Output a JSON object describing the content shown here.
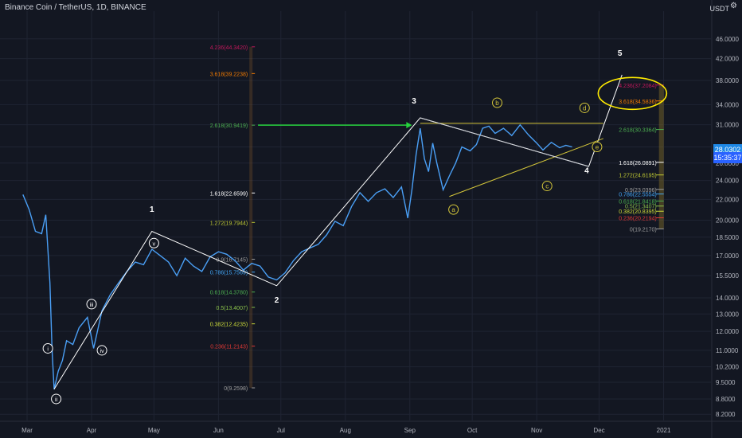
{
  "header": {
    "symbol": "Binance Coin / TetherUS, 1D, BINANCE",
    "unit": "USDT",
    "current_price": "28.0302",
    "countdown": "15:35:37"
  },
  "colors": {
    "background": "#131722",
    "price_line": "#4a9ff5",
    "wave_lines": "#ffffff",
    "abc_lines": "#d4c63a",
    "arrow": "#26d43d",
    "ellipse": "#ffeb00"
  },
  "chart_data": {
    "type": "line",
    "y_scale": "log",
    "ylim": [
      8.0,
      48.0
    ],
    "y_ticks": [
      46.0,
      42.0,
      38.0,
      34.0,
      31.0,
      28.0,
      26.0,
      24.0,
      22.0,
      20.0,
      18.5,
      17.0,
      15.5,
      14.0,
      13.0,
      12.0,
      11.0,
      10.2,
      9.5,
      8.8,
      8.2
    ],
    "x_months": [
      "Mar",
      "Apr",
      "May",
      "Jun",
      "Jul",
      "Aug",
      "Sep",
      "Oct",
      "Nov",
      "Dec",
      "2021"
    ],
    "price_series": [
      {
        "x": "2020-02-28",
        "y": 22.5
      },
      {
        "x": "2020-03-02",
        "y": 21.0
      },
      {
        "x": "2020-03-05",
        "y": 19.0
      },
      {
        "x": "2020-03-08",
        "y": 18.8
      },
      {
        "x": "2020-03-10",
        "y": 20.5
      },
      {
        "x": "2020-03-12",
        "y": 15.0
      },
      {
        "x": "2020-03-13",
        "y": 11.0
      },
      {
        "x": "2020-03-14",
        "y": 9.2
      },
      {
        "x": "2020-03-16",
        "y": 10.0
      },
      {
        "x": "2020-03-18",
        "y": 10.5
      },
      {
        "x": "2020-03-20",
        "y": 11.5
      },
      {
        "x": "2020-03-23",
        "y": 11.3
      },
      {
        "x": "2020-03-26",
        "y": 12.2
      },
      {
        "x": "2020-03-30",
        "y": 12.8
      },
      {
        "x": "2020-04-02",
        "y": 11.1
      },
      {
        "x": "2020-04-06",
        "y": 13.2
      },
      {
        "x": "2020-04-10",
        "y": 14.2
      },
      {
        "x": "2020-04-14",
        "y": 15.0
      },
      {
        "x": "2020-04-18",
        "y": 15.8
      },
      {
        "x": "2020-04-22",
        "y": 16.5
      },
      {
        "x": "2020-04-26",
        "y": 16.3
      },
      {
        "x": "2020-04-30",
        "y": 17.5
      },
      {
        "x": "2020-05-04",
        "y": 17.0
      },
      {
        "x": "2020-05-08",
        "y": 16.5
      },
      {
        "x": "2020-05-12",
        "y": 15.5
      },
      {
        "x": "2020-05-16",
        "y": 16.8
      },
      {
        "x": "2020-05-20",
        "y": 16.2
      },
      {
        "x": "2020-05-24",
        "y": 15.8
      },
      {
        "x": "2020-05-28",
        "y": 16.9
      },
      {
        "x": "2020-06-01",
        "y": 17.3
      },
      {
        "x": "2020-06-05",
        "y": 17.1
      },
      {
        "x": "2020-06-09",
        "y": 16.6
      },
      {
        "x": "2020-06-13",
        "y": 15.9
      },
      {
        "x": "2020-06-17",
        "y": 16.4
      },
      {
        "x": "2020-06-21",
        "y": 16.2
      },
      {
        "x": "2020-06-25",
        "y": 15.4
      },
      {
        "x": "2020-06-29",
        "y": 15.2
      },
      {
        "x": "2020-07-03",
        "y": 15.7
      },
      {
        "x": "2020-07-07",
        "y": 16.6
      },
      {
        "x": "2020-07-11",
        "y": 17.3
      },
      {
        "x": "2020-07-15",
        "y": 17.6
      },
      {
        "x": "2020-07-19",
        "y": 17.9
      },
      {
        "x": "2020-07-23",
        "y": 18.7
      },
      {
        "x": "2020-07-27",
        "y": 19.9
      },
      {
        "x": "2020-07-31",
        "y": 19.5
      },
      {
        "x": "2020-08-04",
        "y": 21.3
      },
      {
        "x": "2020-08-08",
        "y": 22.7
      },
      {
        "x": "2020-08-12",
        "y": 21.8
      },
      {
        "x": "2020-08-16",
        "y": 22.7
      },
      {
        "x": "2020-08-20",
        "y": 23.1
      },
      {
        "x": "2020-08-24",
        "y": 22.2
      },
      {
        "x": "2020-08-28",
        "y": 23.3
      },
      {
        "x": "2020-08-31",
        "y": 20.2
      },
      {
        "x": "2020-09-02",
        "y": 23.0
      },
      {
        "x": "2020-09-04",
        "y": 27.0
      },
      {
        "x": "2020-09-06",
        "y": 30.5
      },
      {
        "x": "2020-09-08",
        "y": 26.5
      },
      {
        "x": "2020-09-10",
        "y": 25.0
      },
      {
        "x": "2020-09-12",
        "y": 28.5
      },
      {
        "x": "2020-09-14",
        "y": 26.0
      },
      {
        "x": "2020-09-17",
        "y": 23.0
      },
      {
        "x": "2020-09-20",
        "y": 24.5
      },
      {
        "x": "2020-09-23",
        "y": 26.0
      },
      {
        "x": "2020-09-26",
        "y": 28.0
      },
      {
        "x": "2020-09-30",
        "y": 27.5
      },
      {
        "x": "2020-10-03",
        "y": 28.3
      },
      {
        "x": "2020-10-06",
        "y": 30.5
      },
      {
        "x": "2020-10-09",
        "y": 30.8
      },
      {
        "x": "2020-10-12",
        "y": 29.8
      },
      {
        "x": "2020-10-16",
        "y": 30.5
      },
      {
        "x": "2020-10-20",
        "y": 29.5
      },
      {
        "x": "2020-10-24",
        "y": 31.0
      },
      {
        "x": "2020-10-28",
        "y": 29.6
      },
      {
        "x": "2020-11-01",
        "y": 28.5
      },
      {
        "x": "2020-11-04",
        "y": 27.6
      },
      {
        "x": "2020-11-08",
        "y": 28.6
      },
      {
        "x": "2020-11-12",
        "y": 27.9
      },
      {
        "x": "2020-11-15",
        "y": 28.2
      },
      {
        "x": "2020-11-18",
        "y": 28.0
      }
    ],
    "wave_labels": [
      {
        "text": "1",
        "x": "2020-04-30",
        "y": 20.8
      },
      {
        "text": "2",
        "x": "2020-06-29",
        "y": 13.7
      },
      {
        "text": "3",
        "x": "2020-09-03",
        "y": 34.2
      },
      {
        "text": "4",
        "x": "2020-11-25",
        "y": 24.8
      },
      {
        "text": "5",
        "x": "2020-12-11",
        "y": 42.6
      }
    ],
    "sub_wave_labels": [
      {
        "text": "i",
        "x": "2020-03-11",
        "y": 11.1
      },
      {
        "text": "ii",
        "x": "2020-03-15",
        "y": 8.8
      },
      {
        "text": "iii",
        "x": "2020-04-01",
        "y": 13.6
      },
      {
        "text": "iv",
        "x": "2020-04-06",
        "y": 11.0
      },
      {
        "text": "v",
        "x": "2020-05-01",
        "y": 18.0
      }
    ],
    "abc_labels": [
      {
        "text": "a",
        "x": "2020-09-22",
        "y": 21.0
      },
      {
        "text": "b",
        "x": "2020-10-13",
        "y": 34.3
      },
      {
        "text": "c",
        "x": "2020-11-06",
        "y": 23.4
      },
      {
        "text": "d",
        "x": "2020-11-24",
        "y": 33.5
      },
      {
        "text": "e",
        "x": "2020-11-30",
        "y": 28.0
      }
    ],
    "fib_left": [
      {
        "label": "4.236(44.3420)",
        "value": 44.342,
        "color": "#c2185b"
      },
      {
        "label": "3.618(39.2238)",
        "value": 39.2238,
        "color": "#f57c00"
      },
      {
        "label": "2.618(30.9419)",
        "value": 30.9419,
        "color": "#4caf50"
      },
      {
        "label": "1.618(22.6599)",
        "value": 22.6599,
        "color": "#ffffff"
      },
      {
        "label": "1.272(19.7944)",
        "value": 19.7944,
        "color": "#c0ca33"
      },
      {
        "label": "0.9(16.7145)",
        "value": 16.7145,
        "color": "#9e9e9e"
      },
      {
        "label": "0.786(15.7569)",
        "value": 15.7569,
        "color": "#42a5f5"
      },
      {
        "label": "0.618(14.3780)",
        "value": 14.378,
        "color": "#4caf50"
      },
      {
        "label": "0.5(13.4007)",
        "value": 13.4007,
        "color": "#8bc34a"
      },
      {
        "label": "0.382(12.4235)",
        "value": 12.4235,
        "color": "#cddc39"
      },
      {
        "label": "0.236(11.2143)",
        "value": 11.2143,
        "color": "#e53935"
      },
      {
        "label": "0(9.2598)",
        "value": 9.2598,
        "color": "#9e9e9e"
      }
    ],
    "fib_right": [
      {
        "label": "4.236(37.2084)",
        "value": 37.2084,
        "color": "#c2185b"
      },
      {
        "label": "3.618(34.5836)",
        "value": 34.5836,
        "color": "#f57c00"
      },
      {
        "label": "2.618(30.3364)",
        "value": 30.3364,
        "color": "#4caf50"
      },
      {
        "label": "1.618(26.0891)",
        "value": 26.0891,
        "color": "#ffffff"
      },
      {
        "label": "1.272(24.6195)",
        "value": 24.6195,
        "color": "#c0ca33"
      },
      {
        "label": "0.9(23.0396)",
        "value": 23.0396,
        "color": "#9e9e9e"
      },
      {
        "label": "0.786(22.5554)",
        "value": 22.5554,
        "color": "#42a5f5"
      },
      {
        "label": "0.618(21.8418)",
        "value": 21.8418,
        "color": "#4caf50"
      },
      {
        "label": "0.5(21.3407)",
        "value": 21.3407,
        "color": "#8bc34a"
      },
      {
        "label": "0.382(20.8395)",
        "value": 20.8395,
        "color": "#cddc39"
      },
      {
        "label": "0.236(20.2194)",
        "value": 20.2194,
        "color": "#e53935"
      },
      {
        "label": "0(19.2170)",
        "value": 19.217,
        "color": "#9e9e9e"
      }
    ]
  }
}
